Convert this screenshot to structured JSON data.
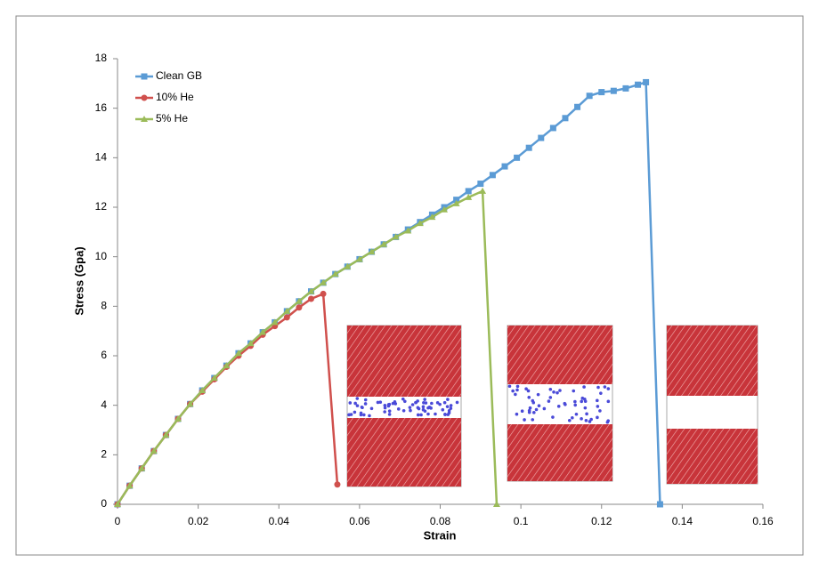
{
  "chart_data": {
    "type": "line",
    "x_label": "Strain",
    "y_label": "Stress (Gpa)",
    "xlim": [
      0,
      0.16
    ],
    "xticks": [
      0,
      0.02,
      0.04,
      0.06,
      0.08,
      0.1,
      0.12,
      0.14,
      0.16
    ],
    "ylim": [
      0,
      18
    ],
    "yticks": [
      0,
      2,
      4,
      6,
      8,
      10,
      12,
      14,
      16,
      18
    ],
    "grid": false,
    "legend": "upper-left",
    "series": [
      {
        "name": "Clean GB",
        "color": "#5b9bd5",
        "marker": "square",
        "x": [
          0,
          0.003,
          0.006,
          0.009,
          0.012,
          0.015,
          0.018,
          0.021,
          0.024,
          0.027,
          0.03,
          0.033,
          0.036,
          0.039,
          0.042,
          0.045,
          0.048,
          0.051,
          0.054,
          0.057,
          0.06,
          0.063,
          0.066,
          0.069,
          0.072,
          0.075,
          0.078,
          0.081,
          0.084,
          0.087,
          0.09,
          0.093,
          0.096,
          0.099,
          0.102,
          0.105,
          0.108,
          0.111,
          0.114,
          0.117,
          0.12,
          0.123,
          0.126,
          0.129,
          0.131,
          0.1345
        ],
        "values": [
          0,
          0.75,
          1.45,
          2.15,
          2.8,
          3.45,
          4.05,
          4.6,
          5.1,
          5.6,
          6.1,
          6.5,
          6.95,
          7.35,
          7.8,
          8.2,
          8.6,
          8.95,
          9.3,
          9.6,
          9.9,
          10.2,
          10.5,
          10.8,
          11.1,
          11.4,
          11.7,
          12.0,
          12.3,
          12.65,
          12.95,
          13.3,
          13.65,
          14.0,
          14.4,
          14.8,
          15.2,
          15.6,
          16.05,
          16.5,
          16.65,
          16.7,
          16.8,
          16.95,
          17.05,
          0
        ]
      },
      {
        "name": "10% He",
        "color": "#d0504d",
        "marker": "circle",
        "x": [
          0,
          0.003,
          0.006,
          0.009,
          0.012,
          0.015,
          0.018,
          0.021,
          0.024,
          0.027,
          0.03,
          0.033,
          0.036,
          0.039,
          0.042,
          0.045,
          0.048,
          0.051,
          0.0545
        ],
        "values": [
          0,
          0.75,
          1.45,
          2.15,
          2.8,
          3.45,
          4.05,
          4.55,
          5.05,
          5.55,
          6.0,
          6.4,
          6.85,
          7.2,
          7.55,
          7.95,
          8.3,
          8.5,
          0.8
        ]
      },
      {
        "name": "5% He",
        "color": "#9bbb59",
        "marker": "triangle",
        "x": [
          0,
          0.003,
          0.006,
          0.009,
          0.012,
          0.015,
          0.018,
          0.021,
          0.024,
          0.027,
          0.03,
          0.033,
          0.036,
          0.039,
          0.042,
          0.045,
          0.048,
          0.051,
          0.054,
          0.057,
          0.06,
          0.063,
          0.066,
          0.069,
          0.072,
          0.075,
          0.078,
          0.081,
          0.084,
          0.087,
          0.0905,
          0.094
        ],
        "values": [
          0,
          0.75,
          1.45,
          2.15,
          2.8,
          3.45,
          4.05,
          4.6,
          5.1,
          5.6,
          6.1,
          6.5,
          6.95,
          7.35,
          7.8,
          8.2,
          8.6,
          8.95,
          9.3,
          9.6,
          9.9,
          10.2,
          10.5,
          10.8,
          11.05,
          11.35,
          11.6,
          11.9,
          12.15,
          12.4,
          12.65,
          0
        ]
      }
    ]
  }
}
